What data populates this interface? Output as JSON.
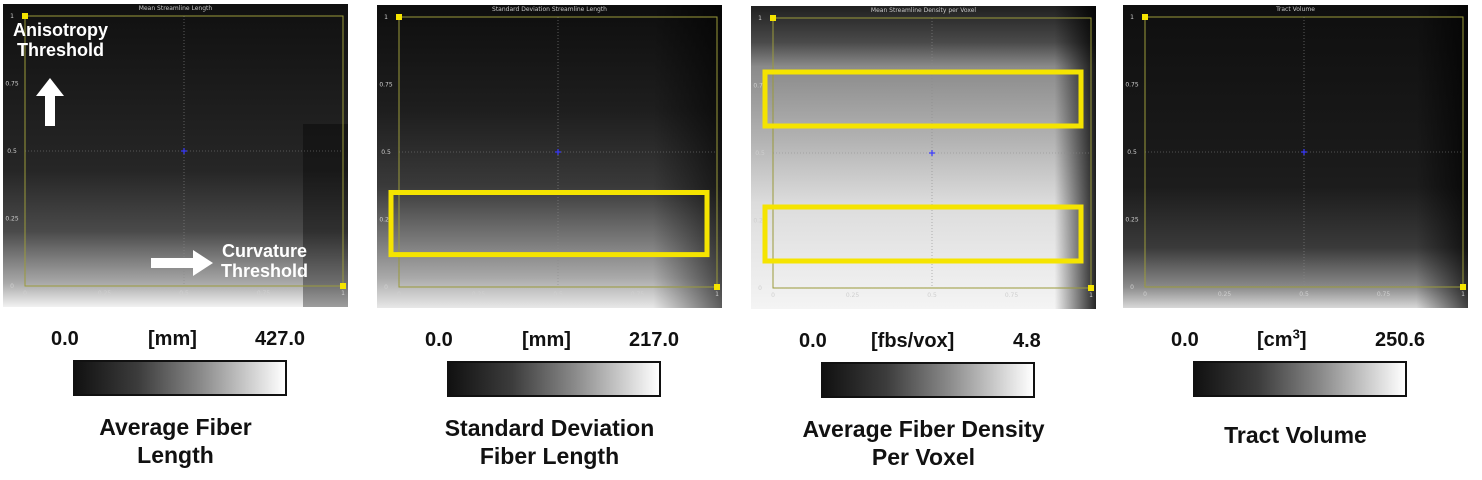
{
  "panels": [
    {
      "plot_title": "Mean Streamline Length",
      "legend_min": "0.0",
      "legend_unit": "[mm]",
      "legend_max": "427.0",
      "name_line1": "Average Fiber",
      "name_line2": "Length",
      "x_ticks": [
        "0",
        "0.25",
        "0.5",
        "0.75",
        "1"
      ],
      "y_ticks": [
        "0",
        "0.25",
        "0.5",
        "0.75",
        "1"
      ]
    },
    {
      "plot_title": "Standard Deviation Streamline Length",
      "legend_min": "0.0",
      "legend_unit": "[mm]",
      "legend_max": "217.0",
      "name_line1": "Standard Deviation",
      "name_line2": "Fiber Length",
      "x_ticks": [
        "0",
        "0.25",
        "0.5",
        "0.75",
        "1"
      ],
      "y_ticks": [
        "0",
        "0.25",
        "0.5",
        "0.75",
        "1"
      ]
    },
    {
      "plot_title": "Mean Streamline Density per Voxel",
      "legend_min": "0.0",
      "legend_unit": "[fbs/vox]",
      "legend_max": "4.8",
      "name_line1": "Average Fiber Density",
      "name_line2": "Per Voxel",
      "x_ticks": [
        "0",
        "0.25",
        "0.5",
        "0.75",
        "1"
      ],
      "y_ticks": [
        "0",
        "0.25",
        "0.5",
        "0.75",
        "1"
      ]
    },
    {
      "plot_title": "Tract Volume",
      "legend_min": "0.0",
      "legend_unit_base": "[cm",
      "legend_unit_sup": "3",
      "legend_unit_close": "]",
      "legend_max": "250.6",
      "name_line1": "Tract Volume",
      "x_ticks": [
        "0",
        "0.25",
        "0.5",
        "0.75",
        "1"
      ],
      "y_ticks": [
        "0",
        "0.25",
        "0.5",
        "0.75",
        "1"
      ]
    }
  ],
  "annotations": {
    "y_axis_line1": "Anisotropy",
    "y_axis_line2": "Threshold",
    "x_axis_line1": "Curvature",
    "x_axis_line2": "Threshold"
  },
  "colors": {
    "highlight_box": "#f5e400",
    "plot_frame": "#9a9a3a",
    "crosshair_marker": "#3a3aff"
  },
  "chart_data": [
    {
      "type": "heatmap",
      "title": "Mean Streamline Length",
      "xlabel": "Curvature Threshold",
      "ylabel": "Anisotropy Threshold",
      "xlim": [
        0,
        1
      ],
      "ylim": [
        0,
        1
      ],
      "colorbar": {
        "min": 0.0,
        "max": 427.0,
        "unit": "mm"
      },
      "crosshair": [
        0.5,
        0.5
      ],
      "highlight_regions": []
    },
    {
      "type": "heatmap",
      "title": "Standard Deviation Streamline Length",
      "xlabel": "Curvature Threshold",
      "ylabel": "Anisotropy Threshold",
      "xlim": [
        0,
        1
      ],
      "ylim": [
        0,
        1
      ],
      "colorbar": {
        "min": 0.0,
        "max": 217.0,
        "unit": "mm"
      },
      "crosshair": [
        0.5,
        0.5
      ],
      "highlight_regions": [
        {
          "y_range": [
            0.12,
            0.35
          ]
        }
      ]
    },
    {
      "type": "heatmap",
      "title": "Mean Streamline Density per Voxel",
      "xlabel": "Curvature Threshold",
      "ylabel": "Anisotropy Threshold",
      "xlim": [
        0,
        1
      ],
      "ylim": [
        0,
        1
      ],
      "colorbar": {
        "min": 0.0,
        "max": 4.8,
        "unit": "fbs/vox"
      },
      "crosshair": [
        0.5,
        0.5
      ],
      "highlight_regions": [
        {
          "y_range": [
            0.6,
            0.8
          ]
        },
        {
          "y_range": [
            0.1,
            0.3
          ]
        }
      ]
    },
    {
      "type": "heatmap",
      "title": "Tract Volume",
      "xlabel": "Curvature Threshold",
      "ylabel": "Anisotropy Threshold",
      "xlim": [
        0,
        1
      ],
      "ylim": [
        0,
        1
      ],
      "colorbar": {
        "min": 0.0,
        "max": 250.6,
        "unit": "cm3"
      },
      "crosshair": [
        0.5,
        0.5
      ],
      "highlight_regions": []
    }
  ]
}
